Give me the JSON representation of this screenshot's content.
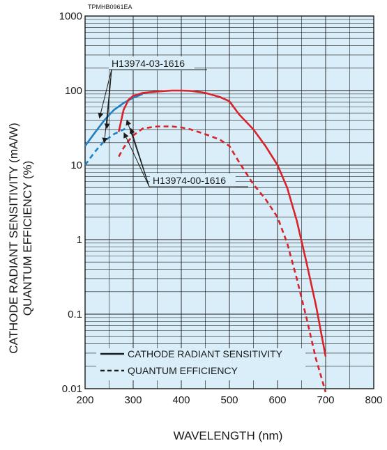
{
  "figure_code": "TPMHB0961EA",
  "colors": {
    "plot_background": "#d9eef8",
    "grid": "#1a1a1a",
    "blue_series": "#1f7fc4",
    "red_series": "#d8232a"
  },
  "chart_data": {
    "type": "line",
    "xlabel": "WAVELENGTH (nm)",
    "ylabel": [
      "CATHODE RADIANT SENSITIVITY (mA/W)",
      "QUANTUM EFFICIENCY (%)"
    ],
    "xlim": [
      200,
      800
    ],
    "ylim": [
      0.01,
      1000
    ],
    "yscale": "log",
    "grid": true,
    "x_ticks": [
      "200",
      "300",
      "400",
      "500",
      "600",
      "700",
      "800"
    ],
    "y_ticks": [
      "0.01",
      "0.1",
      "1",
      "10",
      "100",
      "1000"
    ],
    "legend": {
      "placement": "bottom-left",
      "entries": [
        {
          "label": "CATHODE RADIANT SENSITIVITY",
          "style": "solid"
        },
        {
          "label": "QUANTUM EFFICIENCY",
          "style": "dashed"
        }
      ]
    },
    "annotations": [
      "H13974-03-1616",
      "H13974-00-1616"
    ],
    "series": [
      {
        "model": "H13974-03-1616",
        "quantity": "cathode radiant sensitivity",
        "style": "solid",
        "color": "#1f7fc4",
        "x": [
          200,
          220,
          240,
          260,
          280,
          300,
          320
        ],
        "y": [
          18,
          27,
          40,
          55,
          68,
          80,
          90
        ]
      },
      {
        "model": "H13974-03-1616",
        "quantity": "quantum efficiency",
        "style": "dashed",
        "color": "#1f7fc4",
        "x": [
          200,
          220,
          240,
          260,
          280,
          290
        ],
        "y": [
          10,
          15,
          21,
          26,
          30,
          32
        ]
      },
      {
        "model": "H13974-00-1616",
        "quantity": "cathode radiant sensitivity",
        "style": "solid",
        "color": "#d8232a",
        "x": [
          270,
          280,
          290,
          300,
          320,
          350,
          380,
          400,
          420,
          450,
          480,
          500,
          520,
          550,
          575,
          600,
          620,
          640,
          660,
          680,
          700
        ],
        "y": [
          28,
          55,
          75,
          85,
          93,
          97,
          100,
          100,
          99,
          93,
          82,
          72,
          48,
          30,
          18,
          10,
          5,
          1.8,
          0.5,
          0.13,
          0.027
        ]
      },
      {
        "model": "H13974-00-1616",
        "quantity": "quantum efficiency",
        "style": "dashed",
        "color": "#d8232a",
        "x": [
          270,
          280,
          290,
          300,
          320,
          350,
          380,
          400,
          420,
          450,
          480,
          500,
          520,
          550,
          575,
          600,
          620,
          640,
          660,
          680,
          700
        ],
        "y": [
          13,
          17,
          21,
          25,
          31,
          33,
          33,
          32,
          30,
          26,
          22,
          18,
          11,
          5.5,
          3.5,
          2,
          0.9,
          0.3,
          0.09,
          0.025,
          0.009
        ]
      }
    ]
  }
}
